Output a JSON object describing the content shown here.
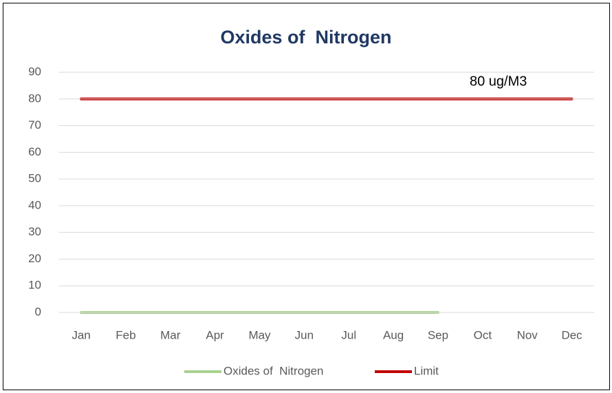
{
  "chart_data": {
    "type": "line",
    "title": "Oxides of  Nitrogen",
    "categories": [
      "Jan",
      "Feb",
      "Mar",
      "Apr",
      "May",
      "Jun",
      "Jul",
      "Aug",
      "Sep",
      "Oct",
      "Nov",
      "Dec"
    ],
    "series": [
      {
        "name": "Oxides of  Nitrogen",
        "color": "#a9d18e",
        "values": [
          0,
          0,
          0,
          0,
          0,
          0,
          0,
          0,
          0,
          null,
          null,
          null
        ]
      },
      {
        "name": "Limit",
        "color": "#c00000",
        "values": [
          80,
          80,
          80,
          80,
          80,
          80,
          80,
          80,
          80,
          80,
          80,
          80
        ]
      }
    ],
    "annotations": [
      "80 ug/M3"
    ],
    "ylim": [
      0,
      90
    ],
    "yticks": [
      0,
      10,
      20,
      30,
      40,
      50,
      60,
      70,
      80,
      90
    ],
    "grid": true,
    "legend": "bottom"
  }
}
